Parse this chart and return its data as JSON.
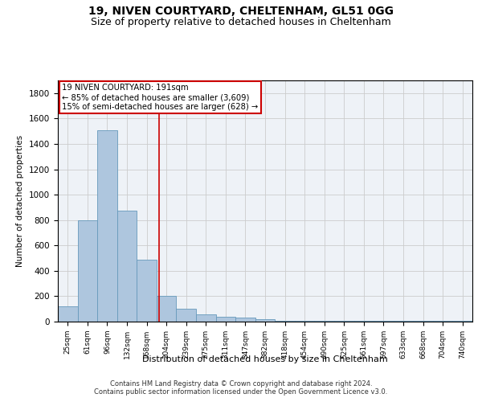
{
  "title": "19, NIVEN COURTYARD, CHELTENHAM, GL51 0GG",
  "subtitle": "Size of property relative to detached houses in Cheltenham",
  "xlabel": "Distribution of detached houses by size in Cheltenham",
  "ylabel": "Number of detached properties",
  "categories": [
    "25sqm",
    "61sqm",
    "96sqm",
    "132sqm",
    "168sqm",
    "204sqm",
    "239sqm",
    "275sqm",
    "311sqm",
    "347sqm",
    "382sqm",
    "418sqm",
    "454sqm",
    "490sqm",
    "525sqm",
    "561sqm",
    "597sqm",
    "633sqm",
    "668sqm",
    "704sqm",
    "740sqm"
  ],
  "values": [
    120,
    800,
    1510,
    875,
    490,
    200,
    100,
    60,
    40,
    30,
    20,
    5,
    5,
    5,
    5,
    5,
    5,
    5,
    5,
    5,
    5
  ],
  "bar_color": "#aec6de",
  "bar_edge_color": "#6699bb",
  "annotation_line1": "19 NIVEN COURTYARD: 191sqm",
  "annotation_line2": "← 85% of detached houses are smaller (3,609)",
  "annotation_line3": "15% of semi-detached houses are larger (628) →",
  "ylim": [
    0,
    1900
  ],
  "yticks": [
    0,
    200,
    400,
    600,
    800,
    1000,
    1200,
    1400,
    1600,
    1800
  ],
  "grid_color": "#cccccc",
  "footnote1": "Contains HM Land Registry data © Crown copyright and database right 2024.",
  "footnote2": "Contains public sector information licensed under the Open Government Licence v3.0.",
  "red_line_color": "#cc0000",
  "annotation_box_color": "#cc0000",
  "background_color": "#eef2f7",
  "red_line_x": 4.62,
  "title_fontsize": 10,
  "subtitle_fontsize": 9
}
